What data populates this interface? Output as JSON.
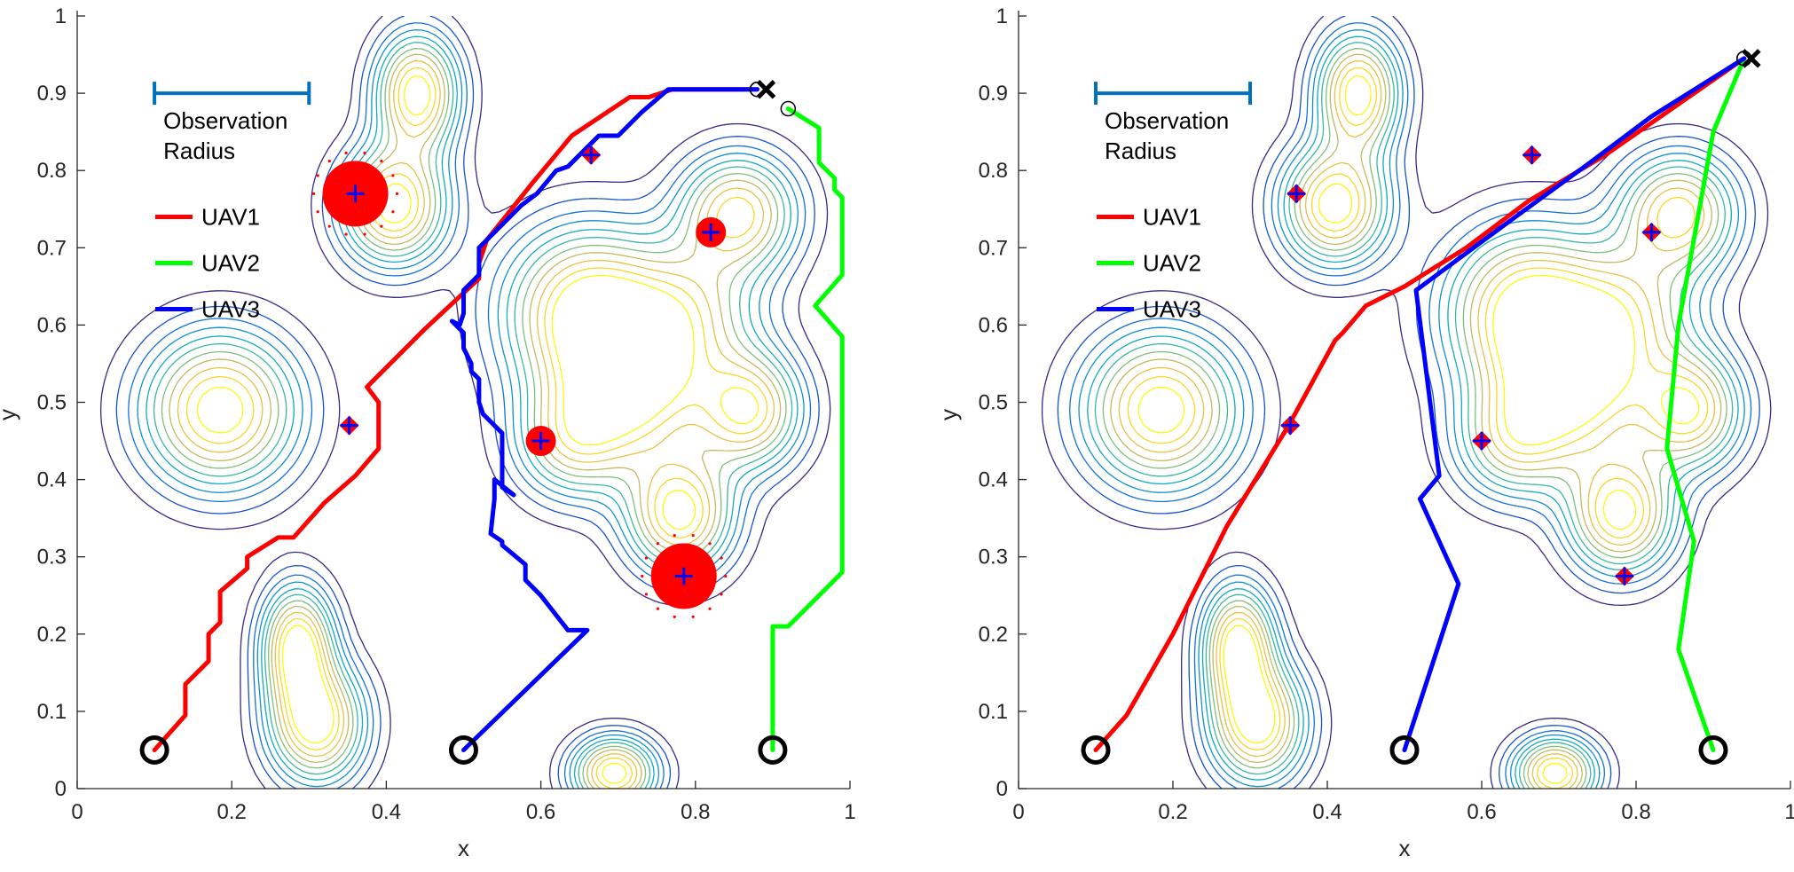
{
  "chart_data": [
    {
      "type": "line",
      "xlabel": "x",
      "ylabel": "y",
      "xlim": [
        0,
        1
      ],
      "ylim": [
        0,
        1
      ],
      "xticks": [
        "0",
        "0.2",
        "0.4",
        "0.6",
        "0.8",
        "1"
      ],
      "yticks": [
        "0",
        "0.1",
        "0.2",
        "0.3",
        "0.4",
        "0.5",
        "0.6",
        "0.7",
        "0.8",
        "0.9",
        "1"
      ],
      "annotation": {
        "line1": "Observation",
        "line2": "Radius",
        "radius_bar": [
          0.1,
          0.3
        ],
        "color": "#0072BD"
      },
      "legend": [
        "UAV1",
        "UAV2",
        "UAV3"
      ],
      "series": [
        {
          "name": "UAV1",
          "color": "#ff0000",
          "points": [
            [
              0.1,
              0.05
            ],
            [
              0.14,
              0.095
            ],
            [
              0.14,
              0.135
            ],
            [
              0.17,
              0.165
            ],
            [
              0.17,
              0.2
            ],
            [
              0.185,
              0.215
            ],
            [
              0.185,
              0.255
            ],
            [
              0.22,
              0.285
            ],
            [
              0.22,
              0.3
            ],
            [
              0.26,
              0.325
            ],
            [
              0.28,
              0.325
            ],
            [
              0.32,
              0.37
            ],
            [
              0.36,
              0.405
            ],
            [
              0.39,
              0.44
            ],
            [
              0.39,
              0.5
            ],
            [
              0.375,
              0.52
            ],
            [
              0.45,
              0.595
            ],
            [
              0.52,
              0.66
            ],
            [
              0.52,
              0.68
            ],
            [
              0.53,
              0.71
            ],
            [
              0.59,
              0.785
            ],
            [
              0.64,
              0.845
            ],
            [
              0.715,
              0.895
            ],
            [
              0.74,
              0.895
            ],
            [
              0.77,
              0.905
            ],
            [
              0.88,
              0.905
            ]
          ]
        },
        {
          "name": "UAV2",
          "color": "#00ff00",
          "points": [
            [
              0.9,
              0.05
            ],
            [
              0.9,
              0.21
            ],
            [
              0.92,
              0.21
            ],
            [
              0.99,
              0.28
            ],
            [
              0.99,
              0.585
            ],
            [
              0.955,
              0.625
            ],
            [
              0.99,
              0.665
            ],
            [
              0.99,
              0.765
            ],
            [
              0.98,
              0.775
            ],
            [
              0.98,
              0.79
            ],
            [
              0.96,
              0.81
            ],
            [
              0.96,
              0.855
            ],
            [
              0.92,
              0.88
            ]
          ]
        },
        {
          "name": "UAV3",
          "color": "#0000ff",
          "points": [
            [
              0.5,
              0.05
            ],
            [
              0.66,
              0.205
            ],
            [
              0.635,
              0.205
            ],
            [
              0.6,
              0.25
            ],
            [
              0.58,
              0.27
            ],
            [
              0.58,
              0.29
            ],
            [
              0.55,
              0.315
            ],
            [
              0.55,
              0.32
            ],
            [
              0.535,
              0.33
            ],
            [
              0.54,
              0.375
            ],
            [
              0.54,
              0.4
            ],
            [
              0.565,
              0.38
            ],
            [
              0.55,
              0.39
            ],
            [
              0.55,
              0.43
            ],
            [
              0.55,
              0.46
            ],
            [
              0.525,
              0.485
            ],
            [
              0.52,
              0.5
            ],
            [
              0.52,
              0.53
            ],
            [
              0.51,
              0.54
            ],
            [
              0.51,
              0.55
            ],
            [
              0.5,
              0.57
            ],
            [
              0.5,
              0.59
            ],
            [
              0.485,
              0.605
            ],
            [
              0.495,
              0.6
            ],
            [
              0.5,
              0.615
            ],
            [
              0.5,
              0.645
            ],
            [
              0.52,
              0.665
            ],
            [
              0.52,
              0.7
            ],
            [
              0.545,
              0.725
            ],
            [
              0.575,
              0.755
            ],
            [
              0.595,
              0.77
            ],
            [
              0.62,
              0.8
            ],
            [
              0.635,
              0.805
            ],
            [
              0.665,
              0.835
            ],
            [
              0.675,
              0.845
            ],
            [
              0.7,
              0.845
            ],
            [
              0.73,
              0.875
            ],
            [
              0.765,
              0.905
            ],
            [
              0.88,
              0.905
            ]
          ]
        }
      ],
      "markers": [
        [
          0.36,
          0.77
        ],
        [
          0.665,
          0.82
        ],
        [
          0.82,
          0.72
        ],
        [
          0.352,
          0.47
        ],
        [
          0.6,
          0.45
        ],
        [
          0.785,
          0.275
        ]
      ],
      "big_discs": [
        [
          0.36,
          0.77
        ],
        [
          0.785,
          0.275
        ]
      ],
      "small_discs": [
        [
          0.82,
          0.72
        ],
        [
          0.6,
          0.45
        ]
      ]
    },
    {
      "type": "line",
      "xlabel": "x",
      "ylabel": "y",
      "xlim": [
        0,
        1
      ],
      "ylim": [
        0,
        1
      ],
      "xticks": [
        "0",
        "0.2",
        "0.4",
        "0.6",
        "0.8",
        "1"
      ],
      "yticks": [
        "0",
        "0.1",
        "0.2",
        "0.3",
        "0.4",
        "0.5",
        "0.6",
        "0.7",
        "0.8",
        "0.9",
        "1"
      ],
      "annotation": {
        "line1": "Observation",
        "line2": "Radius",
        "radius_bar": [
          0.1,
          0.3
        ],
        "color": "#0072BD"
      },
      "legend": [
        "UAV1",
        "UAV2",
        "UAV3"
      ],
      "series": [
        {
          "name": "UAV1",
          "color": "#ff0000",
          "points": [
            [
              0.1,
              0.05
            ],
            [
              0.14,
              0.095
            ],
            [
              0.2,
              0.2
            ],
            [
              0.27,
              0.34
            ],
            [
              0.35,
              0.47
            ],
            [
              0.41,
              0.58
            ],
            [
              0.42,
              0.59
            ],
            [
              0.45,
              0.625
            ],
            [
              0.5,
              0.65
            ],
            [
              0.58,
              0.7
            ],
            [
              0.66,
              0.76
            ],
            [
              0.76,
              0.82
            ],
            [
              0.94,
              0.945
            ]
          ]
        },
        {
          "name": "UAV2",
          "color": "#00ff00",
          "points": [
            [
              0.9,
              0.05
            ],
            [
              0.855,
              0.18
            ],
            [
              0.875,
              0.32
            ],
            [
              0.84,
              0.44
            ],
            [
              0.855,
              0.6
            ],
            [
              0.9,
              0.85
            ],
            [
              0.94,
              0.945
            ]
          ]
        },
        {
          "name": "UAV3",
          "color": "#0000ff",
          "points": [
            [
              0.5,
              0.05
            ],
            [
              0.57,
              0.265
            ],
            [
              0.52,
              0.375
            ],
            [
              0.545,
              0.405
            ],
            [
              0.515,
              0.645
            ],
            [
              0.63,
              0.73
            ],
            [
              0.74,
              0.81
            ],
            [
              0.82,
              0.87
            ],
            [
              0.94,
              0.945
            ]
          ]
        }
      ],
      "markers": [
        [
          0.36,
          0.77
        ],
        [
          0.665,
          0.82
        ],
        [
          0.82,
          0.72
        ],
        [
          0.352,
          0.47
        ],
        [
          0.6,
          0.45
        ],
        [
          0.785,
          0.275
        ]
      ],
      "big_discs": [],
      "small_discs": []
    }
  ]
}
